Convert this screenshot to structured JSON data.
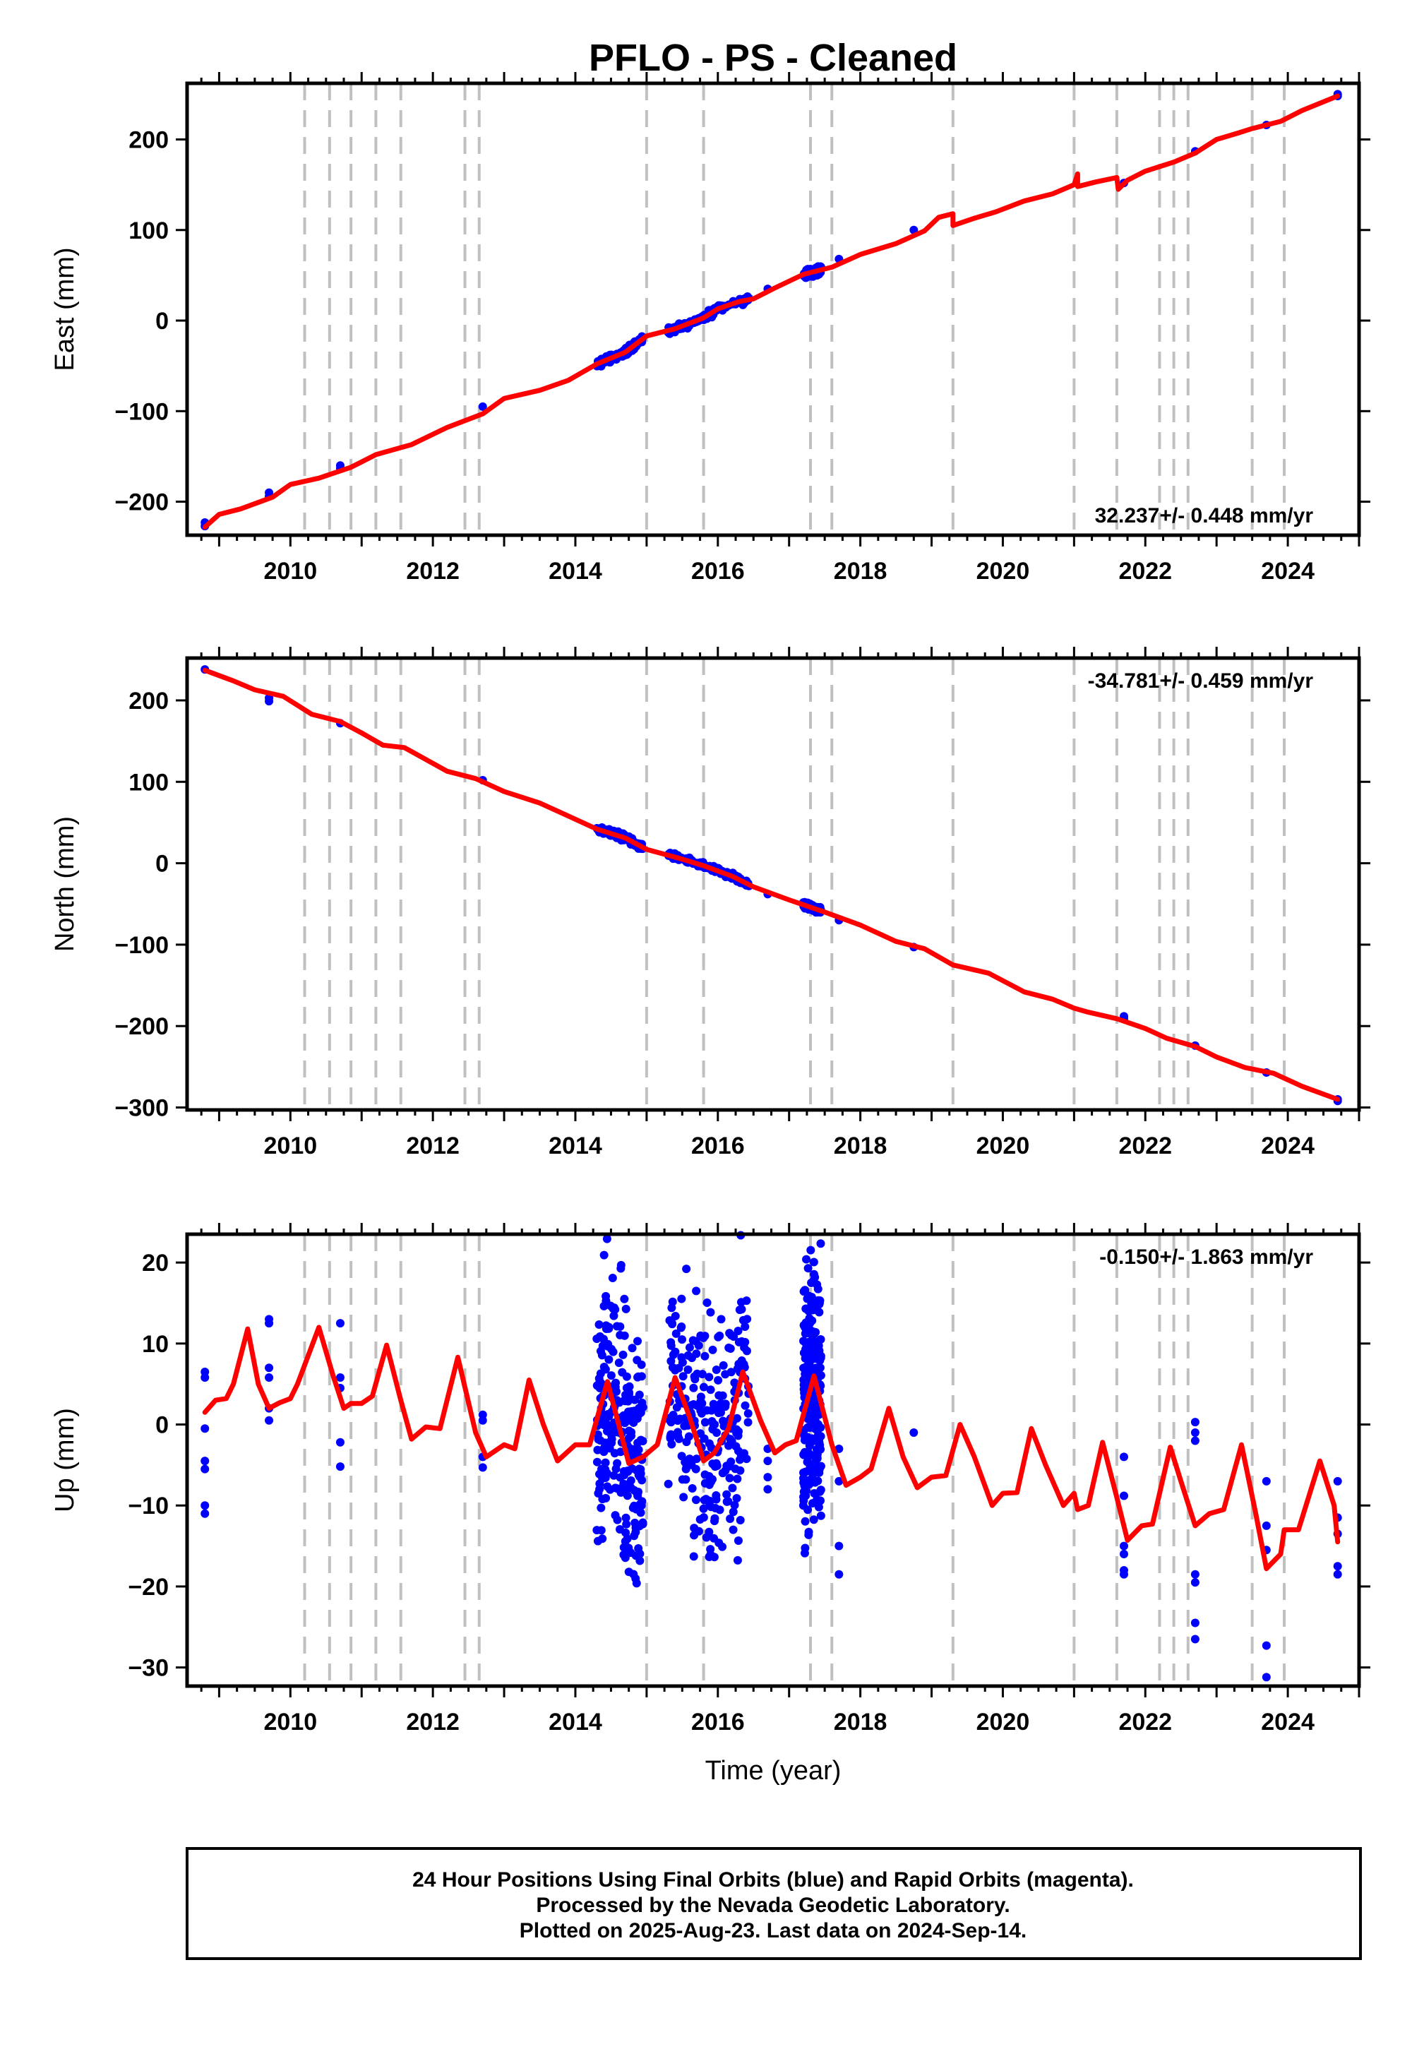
{
  "title": "PFLO  - PS - Cleaned",
  "xlabel": "Time (year)",
  "footer": {
    "line1": "24 Hour Positions Using Final Orbits (blue) and Rapid Orbits (magenta).",
    "line2": "Processed by the Nevada Geodetic Laboratory.",
    "line3": "Plotted on 2025-Aug-23. Last data on 2024-Sep-14."
  },
  "colors": {
    "data": "#0000ff",
    "model": "#ff0000",
    "steps": "#c0c0c0",
    "axes": "#000000"
  },
  "chart_data": [
    {
      "type": "scatter",
      "panel": "east",
      "ylabel": "East (mm)",
      "rate": "32.237+/- 0.448 mm/yr",
      "xlim": [
        2008.55,
        2025.0
      ],
      "ylim": [
        -237,
        262
      ],
      "x_ticks": [
        2010,
        2012,
        2014,
        2016,
        2018,
        2020,
        2022,
        2024
      ],
      "y_ticks": [
        -200,
        -100,
        0,
        100,
        200
      ],
      "step_epochs": [
        2010.2,
        2010.55,
        2010.85,
        2011.2,
        2011.55,
        2012.45,
        2012.65,
        2015.0,
        2015.8,
        2017.3,
        2017.6,
        2019.3,
        2021.0,
        2021.6,
        2022.2,
        2022.4,
        2022.6,
        2023.5,
        2023.95
      ],
      "model_series": [
        [
          2008.8,
          -228
        ],
        [
          2009.0,
          -214
        ],
        [
          2009.3,
          -208
        ],
        [
          2009.75,
          -195
        ],
        [
          2010.0,
          -181
        ],
        [
          2010.4,
          -174
        ],
        [
          2010.85,
          -162
        ],
        [
          2011.2,
          -148
        ],
        [
          2011.7,
          -137
        ],
        [
          2012.2,
          -118
        ],
        [
          2012.7,
          -103
        ],
        [
          2013.0,
          -86
        ],
        [
          2013.5,
          -77
        ],
        [
          2013.9,
          -66
        ],
        [
          2014.3,
          -48
        ],
        [
          2014.7,
          -35
        ],
        [
          2015.0,
          -17
        ],
        [
          2015.4,
          -9
        ],
        [
          2015.8,
          3
        ],
        [
          2016.0,
          13
        ],
        [
          2016.3,
          21
        ],
        [
          2016.5,
          24
        ],
        [
          2016.8,
          36
        ],
        [
          2017.2,
          51
        ],
        [
          2017.6,
          59
        ],
        [
          2018.0,
          73
        ],
        [
          2018.5,
          85
        ],
        [
          2018.9,
          99
        ],
        [
          2019.1,
          114
        ],
        [
          2019.3,
          118
        ],
        [
          2019.3,
          105
        ],
        [
          2019.6,
          113
        ],
        [
          2019.9,
          120
        ],
        [
          2020.3,
          132
        ],
        [
          2020.7,
          140
        ],
        [
          2021.0,
          150
        ],
        [
          2021.05,
          162
        ],
        [
          2021.05,
          148
        ],
        [
          2021.3,
          153
        ],
        [
          2021.6,
          158
        ],
        [
          2021.62,
          145
        ],
        [
          2021.75,
          155
        ],
        [
          2022.0,
          165
        ],
        [
          2022.4,
          175
        ],
        [
          2022.7,
          185
        ],
        [
          2023.0,
          200
        ],
        [
          2023.3,
          207
        ],
        [
          2023.5,
          212
        ],
        [
          2023.9,
          220
        ],
        [
          2024.2,
          232
        ],
        [
          2024.7,
          248
        ]
      ],
      "observations": [
        [
          2008.8,
          -223
        ],
        [
          2008.8,
          -227
        ],
        [
          2009.7,
          -190
        ],
        [
          2009.7,
          -194
        ],
        [
          2010.7,
          -160
        ],
        [
          2010.7,
          -163
        ],
        [
          2012.7,
          -95
        ],
        [
          2016.7,
          35
        ],
        [
          2017.7,
          68
        ],
        [
          2018.75,
          100
        ],
        [
          2021.7,
          152
        ],
        [
          2022.7,
          187
        ],
        [
          2023.7,
          216
        ],
        [
          2024.7,
          250
        ],
        [
          2024.7,
          248
        ]
      ],
      "dense_ranges": [
        [
          2014.3,
          2014.95
        ],
        [
          2015.3,
          2016.45
        ],
        [
          2017.2,
          2017.45
        ]
      ]
    },
    {
      "type": "scatter",
      "panel": "north",
      "ylabel": "North (mm)",
      "rate": "-34.781+/- 0.459 mm/yr",
      "xlim": [
        2008.55,
        2025.0
      ],
      "ylim": [
        -303,
        252
      ],
      "x_ticks": [
        2010,
        2012,
        2014,
        2016,
        2018,
        2020,
        2022,
        2024
      ],
      "y_ticks": [
        -300,
        -200,
        -100,
        0,
        100,
        200
      ],
      "step_epochs": [
        2010.2,
        2010.55,
        2010.85,
        2011.2,
        2011.55,
        2012.45,
        2012.65,
        2015.0,
        2015.8,
        2017.3,
        2017.6,
        2019.3,
        2021.0,
        2021.6,
        2022.2,
        2022.4,
        2022.6,
        2023.5,
        2023.95
      ],
      "model_series": [
        [
          2008.8,
          237
        ],
        [
          2009.2,
          224
        ],
        [
          2009.5,
          213
        ],
        [
          2009.9,
          205
        ],
        [
          2010.3,
          183
        ],
        [
          2010.7,
          174
        ],
        [
          2011.0,
          160
        ],
        [
          2011.3,
          145
        ],
        [
          2011.6,
          142
        ],
        [
          2012.2,
          113
        ],
        [
          2012.6,
          104
        ],
        [
          2013.0,
          88
        ],
        [
          2013.5,
          74
        ],
        [
          2013.9,
          58
        ],
        [
          2014.3,
          42
        ],
        [
          2014.7,
          31
        ],
        [
          2015.0,
          17
        ],
        [
          2015.5,
          5
        ],
        [
          2015.8,
          -3
        ],
        [
          2016.2,
          -16
        ],
        [
          2016.5,
          -29
        ],
        [
          2017.0,
          -45
        ],
        [
          2017.5,
          -60
        ],
        [
          2018.0,
          -76
        ],
        [
          2018.5,
          -96
        ],
        [
          2018.9,
          -105
        ],
        [
          2019.3,
          -125
        ],
        [
          2019.8,
          -135
        ],
        [
          2020.3,
          -158
        ],
        [
          2020.7,
          -167
        ],
        [
          2021.0,
          -178
        ],
        [
          2021.2,
          -183
        ],
        [
          2021.6,
          -191
        ],
        [
          2022.0,
          -203
        ],
        [
          2022.3,
          -215
        ],
        [
          2022.7,
          -225
        ],
        [
          2023.0,
          -238
        ],
        [
          2023.4,
          -251
        ],
        [
          2023.8,
          -258
        ],
        [
          2024.2,
          -274
        ],
        [
          2024.7,
          -290
        ]
      ],
      "observations": [
        [
          2008.8,
          238
        ],
        [
          2009.7,
          203
        ],
        [
          2009.7,
          199
        ],
        [
          2010.7,
          172
        ],
        [
          2012.7,
          102
        ],
        [
          2016.7,
          -38
        ],
        [
          2017.7,
          -70
        ],
        [
          2018.75,
          -103
        ],
        [
          2021.7,
          -188
        ],
        [
          2021.7,
          -191
        ],
        [
          2022.7,
          -224
        ],
        [
          2023.7,
          -257
        ],
        [
          2024.7,
          -290
        ],
        [
          2024.7,
          -292
        ]
      ],
      "dense_ranges": [
        [
          2014.3,
          2014.95
        ],
        [
          2015.3,
          2016.45
        ],
        [
          2017.2,
          2017.45
        ]
      ]
    },
    {
      "type": "scatter",
      "panel": "up",
      "ylabel": "Up (mm)",
      "rate": "-0.150+/- 1.863 mm/yr",
      "xlim": [
        2008.55,
        2025.0
      ],
      "ylim": [
        -32.3,
        23.5
      ],
      "x_ticks": [
        2010,
        2012,
        2014,
        2016,
        2018,
        2020,
        2022,
        2024
      ],
      "y_ticks": [
        -30,
        -20,
        -10,
        0,
        10,
        20
      ],
      "step_epochs": [
        2010.2,
        2010.55,
        2010.85,
        2011.2,
        2011.55,
        2012.45,
        2012.65,
        2015.0,
        2015.8,
        2017.3,
        2017.6,
        2019.3,
        2021.0,
        2021.6,
        2022.2,
        2022.4,
        2022.6,
        2023.5,
        2023.95
      ],
      "model_series": [
        [
          2008.8,
          1.5
        ],
        [
          2008.95,
          3.0
        ],
        [
          2009.1,
          3.2
        ],
        [
          2009.2,
          5.0
        ],
        [
          2009.4,
          11.8
        ],
        [
          2009.55,
          5.0
        ],
        [
          2009.7,
          2.0
        ],
        [
          2009.85,
          2.7
        ],
        [
          2010.0,
          3.2
        ],
        [
          2010.1,
          5.0
        ],
        [
          2010.4,
          12.0
        ],
        [
          2010.6,
          6.0
        ],
        [
          2010.75,
          2.0
        ],
        [
          2010.85,
          2.6
        ],
        [
          2011.0,
          2.6
        ],
        [
          2011.15,
          3.5
        ],
        [
          2011.35,
          9.8
        ],
        [
          2011.55,
          3.0
        ],
        [
          2011.7,
          -1.8
        ],
        [
          2011.9,
          -0.3
        ],
        [
          2012.1,
          -0.5
        ],
        [
          2012.35,
          8.3
        ],
        [
          2012.6,
          -1.0
        ],
        [
          2012.75,
          -4.0
        ],
        [
          2013.0,
          -2.5
        ],
        [
          2013.15,
          -3.0
        ],
        [
          2013.35,
          5.5
        ],
        [
          2013.55,
          0.0
        ],
        [
          2013.75,
          -4.5
        ],
        [
          2014.0,
          -2.5
        ],
        [
          2014.2,
          -2.5
        ],
        [
          2014.45,
          5.3
        ],
        [
          2014.75,
          -4.8
        ],
        [
          2014.95,
          -4.0
        ],
        [
          2015.15,
          -2.5
        ],
        [
          2015.4,
          5.8
        ],
        [
          2015.6,
          1.0
        ],
        [
          2015.8,
          -4.5
        ],
        [
          2015.95,
          -3.5
        ],
        [
          2016.15,
          -0.5
        ],
        [
          2016.35,
          6.5
        ],
        [
          2016.6,
          0.5
        ],
        [
          2016.8,
          -3.5
        ],
        [
          2016.95,
          -2.5
        ],
        [
          2017.1,
          -2.0
        ],
        [
          2017.35,
          6.0
        ],
        [
          2017.6,
          -2.5
        ],
        [
          2017.8,
          -7.5
        ],
        [
          2018.0,
          -6.5
        ],
        [
          2018.15,
          -5.5
        ],
        [
          2018.4,
          2.0
        ],
        [
          2018.6,
          -4.0
        ],
        [
          2018.8,
          -7.8
        ],
        [
          2019.0,
          -6.5
        ],
        [
          2019.2,
          -6.3
        ],
        [
          2019.4,
          0.0
        ],
        [
          2019.6,
          -4.0
        ],
        [
          2019.85,
          -10.0
        ],
        [
          2020.0,
          -8.5
        ],
        [
          2020.2,
          -8.4
        ],
        [
          2020.4,
          -0.5
        ],
        [
          2020.6,
          -5.0
        ],
        [
          2020.85,
          -10.0
        ],
        [
          2021.0,
          -8.5
        ],
        [
          2021.05,
          -10.5
        ],
        [
          2021.2,
          -10.0
        ],
        [
          2021.4,
          -2.2
        ],
        [
          2021.6,
          -9.0
        ],
        [
          2021.75,
          -14.3
        ],
        [
          2021.95,
          -12.5
        ],
        [
          2022.1,
          -12.3
        ],
        [
          2022.35,
          -2.8
        ],
        [
          2022.5,
          -7.0
        ],
        [
          2022.7,
          -12.5
        ],
        [
          2022.9,
          -11.0
        ],
        [
          2023.1,
          -10.5
        ],
        [
          2023.35,
          -2.5
        ],
        [
          2023.55,
          -11.0
        ],
        [
          2023.7,
          -17.8
        ],
        [
          2023.9,
          -16.0
        ],
        [
          2023.95,
          -13.0
        ],
        [
          2024.15,
          -13.0
        ],
        [
          2024.45,
          -4.5
        ],
        [
          2024.65,
          -10.0
        ],
        [
          2024.7,
          -14.5
        ]
      ],
      "observations": [
        [
          2008.8,
          6.5
        ],
        [
          2008.8,
          5.8
        ],
        [
          2008.8,
          -0.5
        ],
        [
          2008.8,
          -4.5
        ],
        [
          2008.8,
          -5.5
        ],
        [
          2008.8,
          -10.0
        ],
        [
          2008.8,
          -11.0
        ],
        [
          2009.7,
          13.0
        ],
        [
          2009.7,
          12.5
        ],
        [
          2009.7,
          7.0
        ],
        [
          2009.7,
          5.8
        ],
        [
          2009.7,
          2.0
        ],
        [
          2009.7,
          0.5
        ],
        [
          2010.7,
          12.5
        ],
        [
          2010.7,
          5.8
        ],
        [
          2010.7,
          4.5
        ],
        [
          2010.7,
          -2.2
        ],
        [
          2010.7,
          -5.2
        ],
        [
          2012.7,
          1.2
        ],
        [
          2012.7,
          0.5
        ],
        [
          2012.7,
          -4.0
        ],
        [
          2012.7,
          -5.3
        ],
        [
          2016.7,
          -3.0
        ],
        [
          2016.7,
          -4.5
        ],
        [
          2016.7,
          -6.5
        ],
        [
          2016.7,
          -8.0
        ],
        [
          2017.2,
          -10.0
        ],
        [
          2017.7,
          -3.0
        ],
        [
          2017.7,
          -7.0
        ],
        [
          2017.7,
          -15.0
        ],
        [
          2017.7,
          -18.5
        ],
        [
          2018.75,
          -1.0
        ],
        [
          2021.7,
          -4.0
        ],
        [
          2021.7,
          -8.8
        ],
        [
          2021.7,
          -15.0
        ],
        [
          2021.7,
          -16.0
        ],
        [
          2021.7,
          -18.0
        ],
        [
          2021.7,
          -18.5
        ],
        [
          2022.7,
          0.3
        ],
        [
          2022.7,
          -1.0
        ],
        [
          2022.7,
          -2.0
        ],
        [
          2022.7,
          -18.5
        ],
        [
          2022.7,
          -19.5
        ],
        [
          2022.7,
          -24.5
        ],
        [
          2022.7,
          -26.5
        ],
        [
          2023.7,
          -7.0
        ],
        [
          2023.7,
          -12.5
        ],
        [
          2023.7,
          -15.5
        ],
        [
          2023.7,
          -27.3
        ],
        [
          2023.7,
          -31.2
        ],
        [
          2024.7,
          -7.0
        ],
        [
          2024.7,
          -11.5
        ],
        [
          2024.7,
          -13.5
        ],
        [
          2024.7,
          -17.5
        ],
        [
          2024.7,
          -18.5
        ]
      ],
      "dense_ranges": [
        [
          2014.3,
          2014.95
        ],
        [
          2015.3,
          2016.45
        ],
        [
          2017.2,
          2017.45
        ]
      ]
    }
  ]
}
